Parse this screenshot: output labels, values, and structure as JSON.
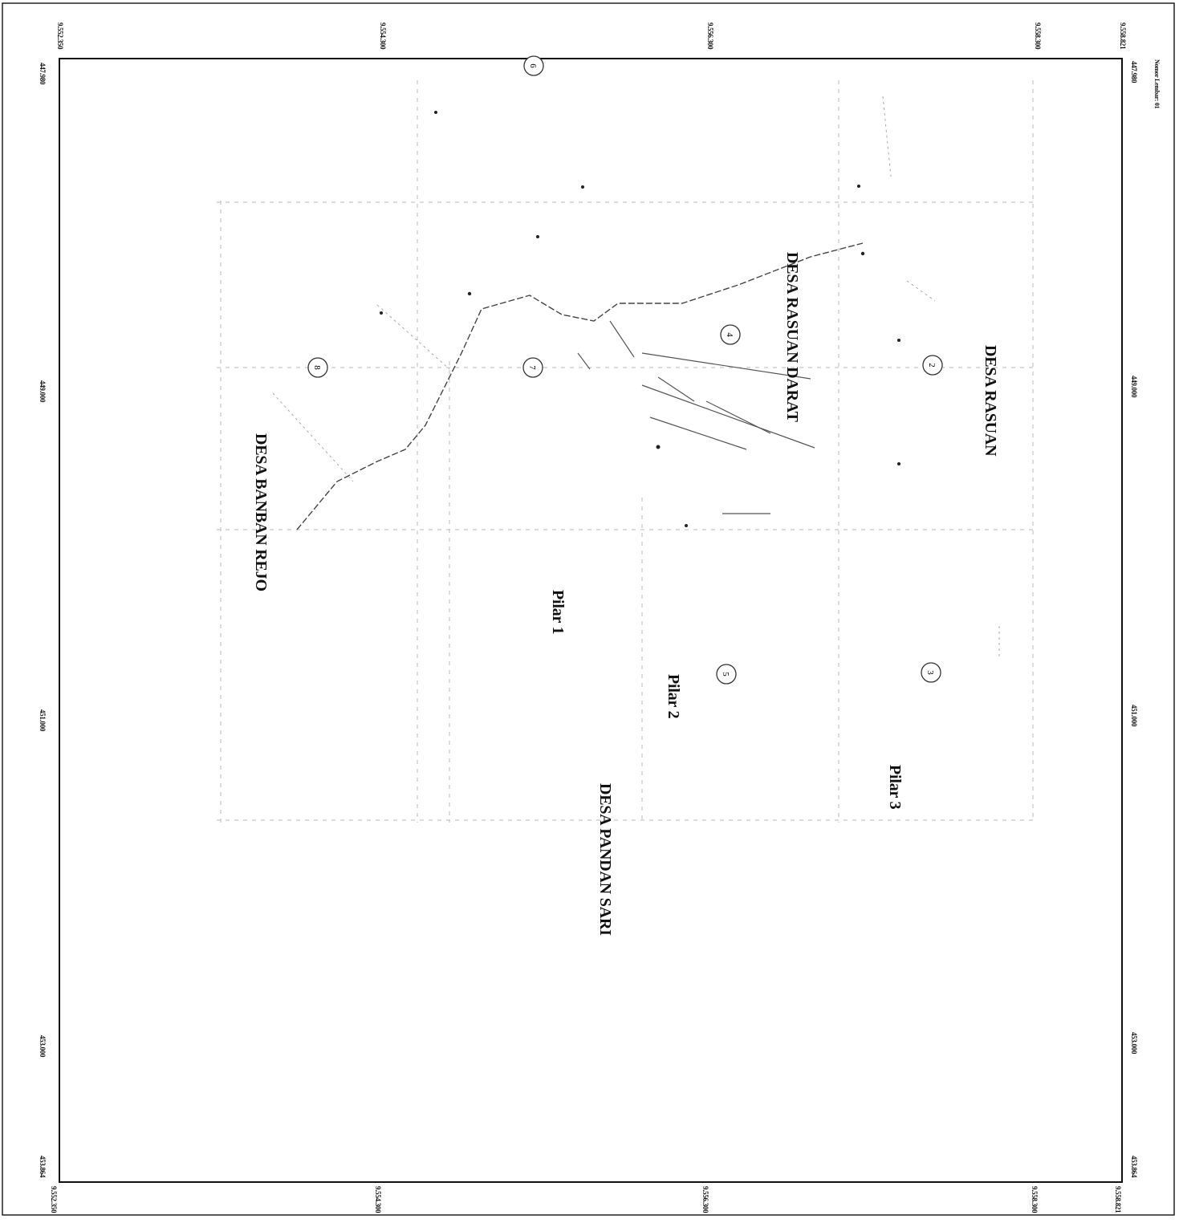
{
  "map": {
    "scale_note": "Nomor Lembar: 01",
    "labels": {
      "desa_rasuan": "DESA RASUAN",
      "desa_rasuan_darat": "DESA RASUAN DARAT",
      "desa_banban_rejo": "DESA BANBAN REJO",
      "desa_pandan_sari": "DESA PANDAN SARI",
      "pilar_1": "Pilar 1",
      "pilar_2": "Pilar 2",
      "pilar_3": "Pilar 3"
    },
    "markers": [
      "2",
      "3",
      "4",
      "5",
      "6",
      "7",
      "8"
    ],
    "coordinates": {
      "northing_left": "9.552.350",
      "northing_2": "9.554.300",
      "northing_3": "9.556.300",
      "northing_4": "9.558.300",
      "northing_right": "9.558.821",
      "easting_first": "447.980",
      "easting_449": "449.000",
      "easting_451": "451.000",
      "easting_453": "453.000",
      "easting_last": "453.864"
    }
  }
}
